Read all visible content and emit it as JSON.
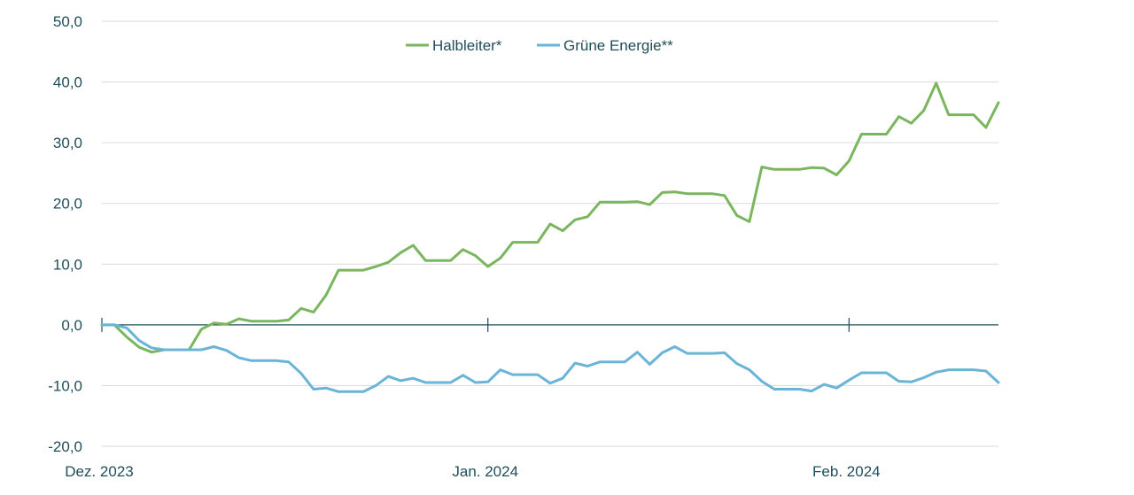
{
  "chart_data": {
    "type": "line",
    "title": "",
    "xlabel": "",
    "ylabel": "",
    "ylim": [
      -20,
      50
    ],
    "y_ticks": [
      "50,0",
      "40,0",
      "30,0",
      "20,0",
      "10,0",
      "0,0",
      "-10,0",
      "-20,0"
    ],
    "y_tick_values": [
      50,
      40,
      30,
      20,
      10,
      0,
      -10,
      -20
    ],
    "x_range": [
      0,
      72
    ],
    "x_ticks": [
      {
        "label": "Dez. 2023",
        "x": 0
      },
      {
        "label": "Jan. 2024",
        "x": 31
      },
      {
        "label": "Feb. 2024",
        "x": 60
      }
    ],
    "grid": true,
    "legend_position": "top-center",
    "series": [
      {
        "name": "Halbleiter*",
        "color": "#7ab65e",
        "x": [
          0,
          1,
          2,
          3,
          4,
          5,
          6,
          7,
          8,
          9,
          10,
          11,
          12,
          13,
          14,
          15,
          16,
          17,
          18,
          19,
          20,
          21,
          22,
          23,
          24,
          25,
          26,
          27,
          28,
          29,
          30,
          31,
          32,
          33,
          34,
          35,
          36,
          37,
          38,
          39,
          40,
          41,
          42,
          43,
          44,
          45,
          46,
          47,
          48,
          49,
          50,
          51,
          52,
          53,
          54,
          55,
          56,
          57,
          58,
          59,
          60,
          61,
          62,
          63,
          64,
          65,
          66,
          67,
          68,
          69,
          70,
          71,
          72
        ],
        "values": [
          0.0,
          0.0,
          -2.0,
          -3.7,
          -4.5,
          -4.1,
          -4.1,
          -4.1,
          -0.7,
          0.3,
          0.1,
          1.0,
          0.6,
          0.6,
          0.6,
          0.8,
          2.7,
          2.1,
          4.9,
          9.0,
          9.0,
          9.0,
          9.6,
          10.3,
          11.9,
          13.1,
          10.6,
          10.6,
          10.6,
          12.4,
          11.4,
          9.6,
          11.0,
          13.6,
          13.6,
          13.6,
          16.6,
          15.5,
          17.3,
          17.8,
          20.2,
          20.2,
          20.2,
          20.3,
          19.8,
          21.8,
          21.9,
          21.6,
          21.6,
          21.6,
          21.3,
          18.0,
          17.0,
          26.0,
          25.6,
          25.6,
          25.6,
          25.9,
          25.8,
          24.7,
          27.0,
          31.4,
          31.4,
          31.4,
          34.3,
          33.2,
          35.3,
          39.8,
          34.6,
          34.6,
          34.6,
          32.5,
          36.6
        ]
      },
      {
        "name": "Grüne Energie**",
        "color": "#6ab4d8",
        "x": [
          0,
          1,
          2,
          3,
          4,
          5,
          6,
          7,
          8,
          9,
          10,
          11,
          12,
          13,
          14,
          15,
          16,
          17,
          18,
          19,
          20,
          21,
          22,
          23,
          24,
          25,
          26,
          27,
          28,
          29,
          30,
          31,
          32,
          33,
          34,
          35,
          36,
          37,
          38,
          39,
          40,
          41,
          42,
          43,
          44,
          45,
          46,
          47,
          48,
          49,
          50,
          51,
          52,
          53,
          54,
          55,
          56,
          57,
          58,
          59,
          60,
          61,
          62,
          63,
          64,
          65,
          66,
          67,
          68,
          69,
          70,
          71,
          72
        ],
        "values": [
          0.0,
          0.0,
          -0.5,
          -2.6,
          -3.8,
          -4.1,
          -4.1,
          -4.1,
          -4.1,
          -3.6,
          -4.2,
          -5.4,
          -5.9,
          -5.9,
          -5.9,
          -6.1,
          -8.0,
          -10.6,
          -10.4,
          -11.0,
          -11.0,
          -11.0,
          -10.0,
          -8.5,
          -9.2,
          -8.8,
          -9.5,
          -9.5,
          -9.5,
          -8.3,
          -9.5,
          -9.4,
          -7.4,
          -8.2,
          -8.2,
          -8.2,
          -9.6,
          -8.8,
          -6.3,
          -6.8,
          -6.1,
          -6.1,
          -6.1,
          -4.5,
          -6.5,
          -4.6,
          -3.6,
          -4.7,
          -4.7,
          -4.7,
          -4.6,
          -6.4,
          -7.4,
          -9.3,
          -10.6,
          -10.6,
          -10.6,
          -10.9,
          -9.8,
          -10.4,
          -9.1,
          -7.9,
          -7.9,
          -7.9,
          -9.3,
          -9.4,
          -8.7,
          -7.8,
          -7.4,
          -7.4,
          -7.4,
          -7.6,
          -9.5
        ]
      }
    ]
  }
}
